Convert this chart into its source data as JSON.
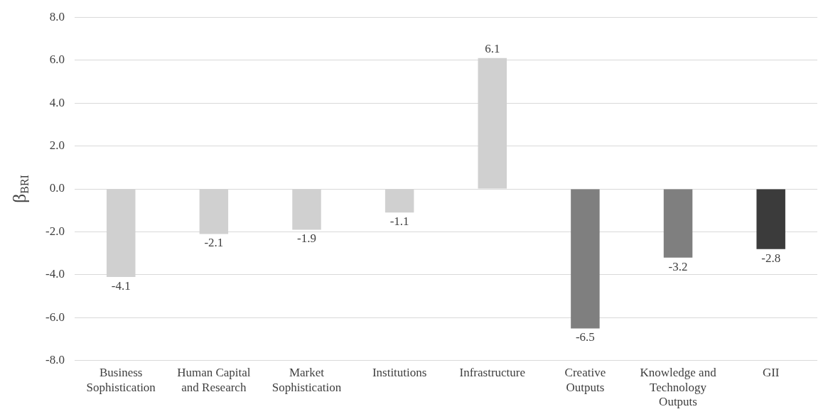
{
  "chart_data": {
    "type": "bar",
    "ylabel": "β$_{BRI}$",
    "categories": [
      "Business Sophistication",
      "Human Capital and Research",
      "Market Sophistication",
      "Institutions",
      "Infrastructure",
      "Creative Outputs",
      "Knowledge and Technology Outputs",
      "GII"
    ],
    "values": [
      -4.1,
      -2.1,
      -1.9,
      -1.1,
      6.1,
      -6.5,
      -3.2,
      -2.8
    ],
    "colors": [
      "#d0d0d0",
      "#d0d0d0",
      "#d0d0d0",
      "#d0d0d0",
      "#d0d0d0",
      "#7f7f7f",
      "#7f7f7f",
      "#3b3b3b"
    ],
    "ylim": [
      -8,
      8
    ],
    "yticks": [
      {
        "value": -8,
        "label": "-8.0"
      },
      {
        "value": -6,
        "label": "-6.0"
      },
      {
        "value": -4,
        "label": "-4.0"
      },
      {
        "value": -2,
        "label": "-2.0"
      },
      {
        "value": 0,
        "label": "0.0"
      },
      {
        "value": 2,
        "label": "2.0"
      },
      {
        "value": 4,
        "label": "4.0"
      },
      {
        "value": 6,
        "label": "6.0"
      },
      {
        "value": 8,
        "label": "8.0"
      }
    ],
    "grid": "y",
    "data_labels": true,
    "legend": false
  }
}
